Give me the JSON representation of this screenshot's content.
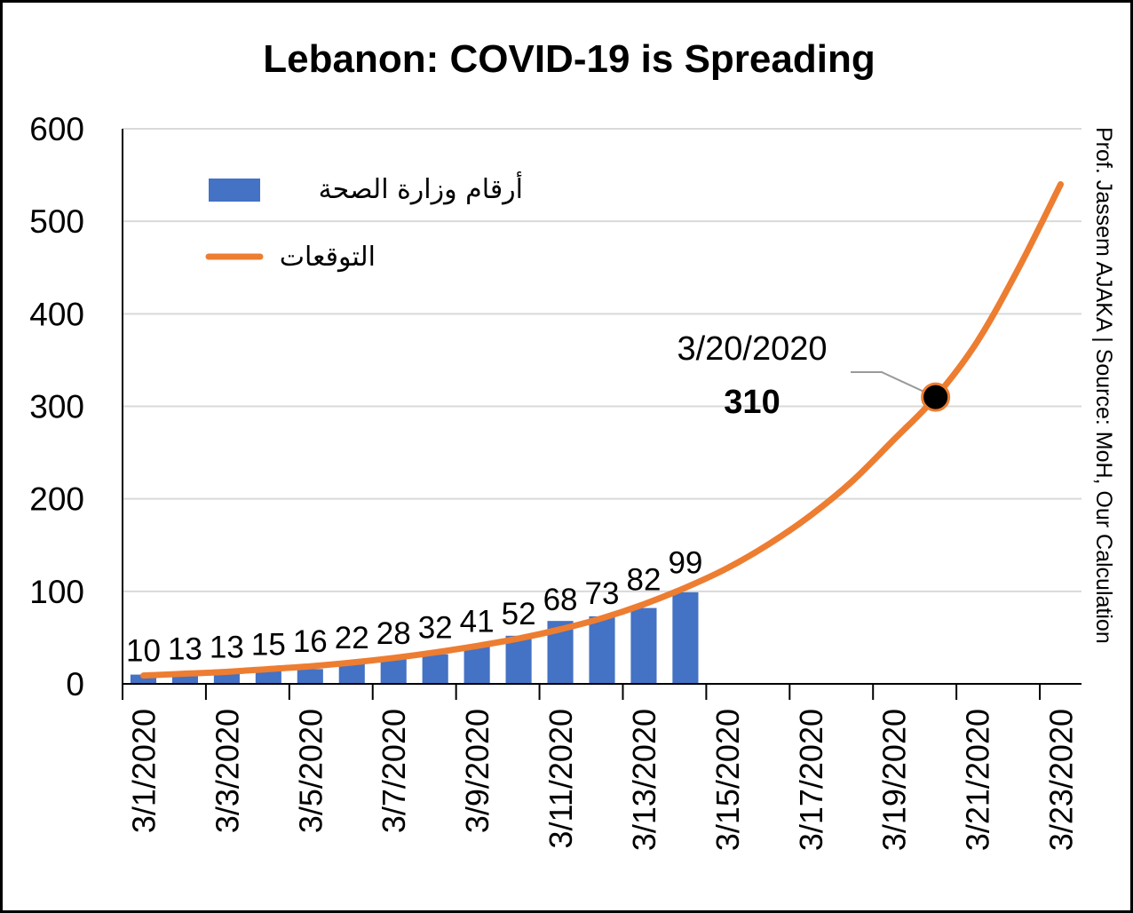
{
  "chart_data": {
    "type": "bar+line",
    "title": "Lebanon: COVID-19 is Spreading",
    "xlabel": "",
    "ylabel": "",
    "ylim": [
      0,
      600
    ],
    "yticks": [
      "0",
      "100",
      "200",
      "300",
      "400",
      "500",
      "600"
    ],
    "grid": true,
    "legend_position": "top-left",
    "x_tick_labels": [
      "3/1/2020",
      "3/3/2020",
      "3/5/2020",
      "3/7/2020",
      "3/9/2020",
      "3/11/2020",
      "3/13/2020",
      "3/15/2020",
      "3/17/2020",
      "3/19/2020",
      "3/21/2020",
      "3/23/2020"
    ],
    "series": [
      {
        "name": "أرقام وزارة الصحة",
        "type": "bar",
        "color": "#4472C4",
        "x": [
          "3/1/2020",
          "3/2/2020",
          "3/3/2020",
          "3/4/2020",
          "3/5/2020",
          "3/6/2020",
          "3/7/2020",
          "3/8/2020",
          "3/9/2020",
          "3/10/2020",
          "3/11/2020",
          "3/12/2020",
          "3/13/2020",
          "3/14/2020"
        ],
        "values": [
          10,
          13,
          13,
          15,
          16,
          22,
          28,
          32,
          41,
          52,
          68,
          73,
          82,
          99
        ],
        "data_labels": [
          "10",
          "13",
          "13",
          "15",
          "16",
          "22",
          "28",
          "32",
          "41",
          "52",
          "68",
          "73",
          "82",
          "99"
        ]
      },
      {
        "name": "التوقعات",
        "type": "line",
        "color": "#ED7D31",
        "x": [
          "3/1/2020",
          "3/2/2020",
          "3/3/2020",
          "3/4/2020",
          "3/5/2020",
          "3/6/2020",
          "3/7/2020",
          "3/8/2020",
          "3/9/2020",
          "3/10/2020",
          "3/11/2020",
          "3/12/2020",
          "3/13/2020",
          "3/14/2020",
          "3/15/2020",
          "3/16/2020",
          "3/17/2020",
          "3/18/2020",
          "3/19/2020",
          "3/20/2020",
          "3/21/2020",
          "3/22/2020",
          "3/23/2020"
        ],
        "values": [
          9,
          11,
          13,
          16,
          19,
          23,
          28,
          34,
          41,
          49,
          59,
          71,
          86,
          104,
          125,
          151,
          182,
          219,
          264,
          310,
          370,
          450,
          540
        ]
      }
    ],
    "annotation": {
      "date": "3/20/2020",
      "value": "310",
      "point_x": "3/20/2020",
      "point_y": 310
    },
    "side_text": "Prof. Jassem AJAKA | Source: MoH, Our Calculation"
  }
}
